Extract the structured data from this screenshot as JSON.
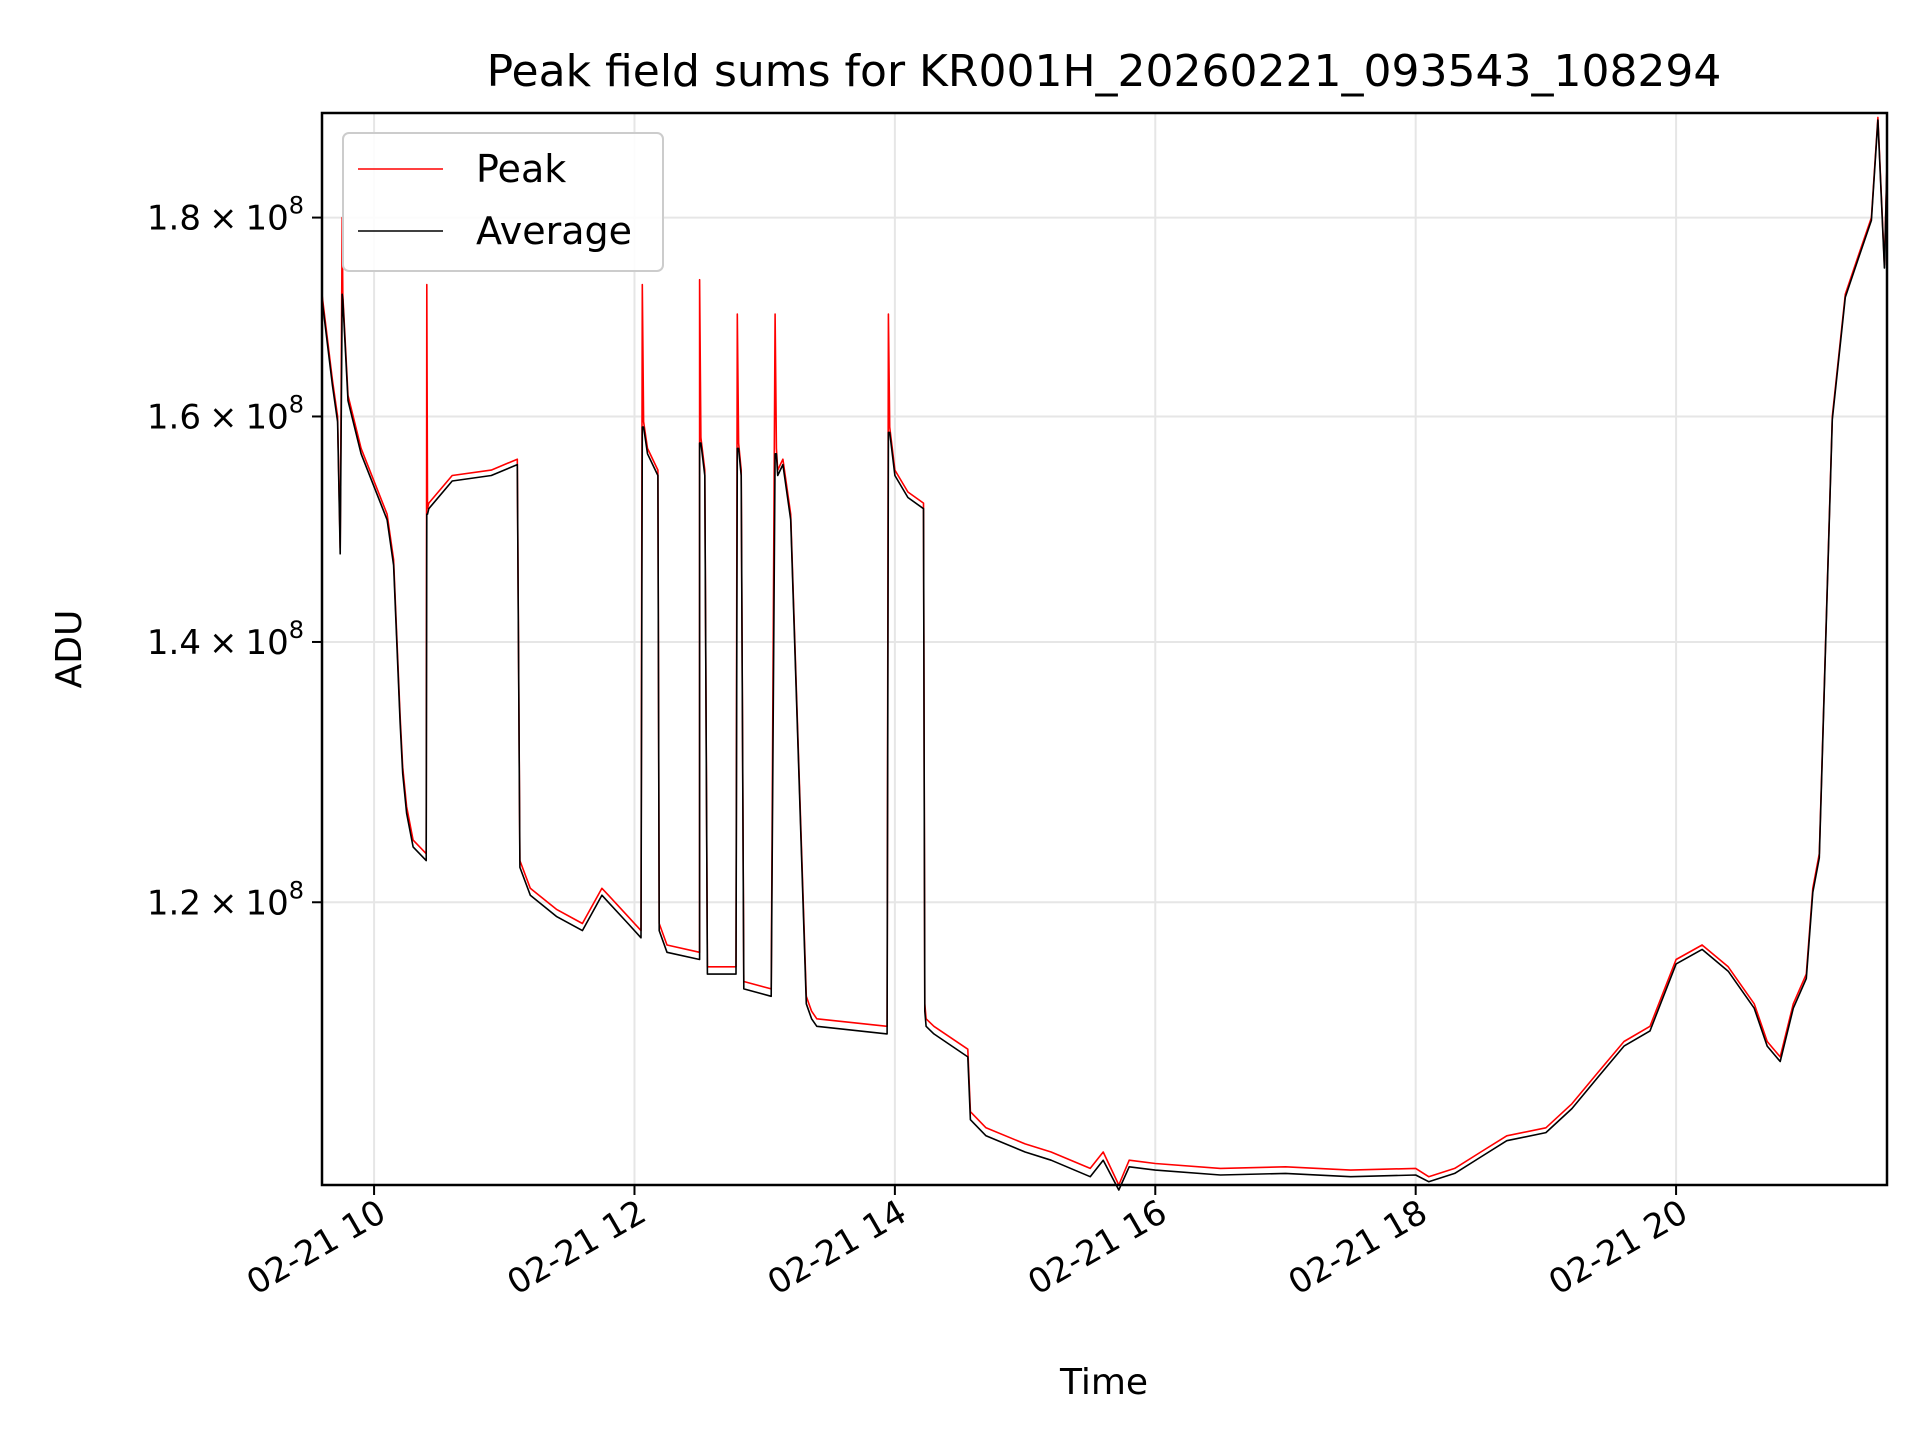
{
  "chart_data": {
    "type": "line",
    "title": "Peak field sums for KR001H_20260221_093543_108294",
    "xlabel": "Time",
    "ylabel": "ADU",
    "yscale": "log",
    "x_unit": "hours since 2026-02-21 00:00",
    "xlim": [
      9.6,
      21.62
    ],
    "ylim": [
      101500000,
      191500000
    ],
    "grid": true,
    "legend_position": "upper-left",
    "x_ticks": [
      {
        "value": 10,
        "label": "02-21 10"
      },
      {
        "value": 12,
        "label": "02-21 12"
      },
      {
        "value": 14,
        "label": "02-21 14"
      },
      {
        "value": 16,
        "label": "02-21 16"
      },
      {
        "value": 18,
        "label": "02-21 18"
      },
      {
        "value": 20,
        "label": "02-21 20"
      }
    ],
    "y_ticks": [
      {
        "value": 120000000,
        "mantissa": "1.2",
        "base": "10",
        "exp": "8"
      },
      {
        "value": 140000000,
        "mantissa": "1.4",
        "base": "10",
        "exp": "8"
      },
      {
        "value": 160000000,
        "mantissa": "1.6",
        "base": "10",
        "exp": "8"
      },
      {
        "value": 180000000,
        "mantissa": "1.8",
        "base": "10",
        "exp": "8"
      }
    ],
    "series": [
      {
        "name": "Peak",
        "color": "#ff0000",
        "x": [
          9.6,
          9.68,
          9.72,
          9.74,
          9.755,
          9.76,
          9.8,
          9.9,
          10.1,
          10.15,
          10.2,
          10.22,
          10.25,
          10.3,
          10.4,
          10.405,
          10.41,
          10.42,
          10.6,
          10.9,
          11.1,
          11.12,
          11.2,
          11.4,
          11.6,
          11.75,
          11.8,
          11.95,
          12.05,
          12.06,
          12.07,
          12.1,
          12.18,
          12.19,
          12.25,
          12.5,
          12.5,
          12.51,
          12.54,
          12.56,
          12.78,
          12.79,
          12.8,
          12.82,
          12.84,
          13.05,
          13.08,
          13.09,
          13.1,
          13.14,
          13.2,
          13.32,
          13.34,
          13.36,
          13.4,
          13.94,
          13.95,
          13.96,
          14.0,
          14.1,
          14.22,
          14.23,
          14.24,
          14.3,
          14.56,
          14.58,
          14.7,
          15.0,
          15.2,
          15.5,
          15.6,
          15.72,
          15.8,
          16.0,
          16.5,
          17.0,
          17.5,
          18.0,
          18.1,
          18.3,
          18.5,
          18.7,
          19.0,
          19.2,
          19.4,
          19.6,
          19.8,
          20.0,
          20.2,
          20.4,
          20.6,
          20.7,
          20.8,
          20.9,
          21.0,
          21.05,
          21.1,
          21.2,
          21.3,
          21.4,
          21.5,
          21.55,
          21.6,
          21.62
        ],
        "values": [
          172000000,
          163500000,
          160000000,
          148000000,
          180000000,
          172000000,
          162000000,
          157000000,
          151000000,
          147000000,
          134000000,
          130000000,
          127000000,
          124500000,
          123500000,
          173000000,
          151500000,
          152000000,
          154500000,
          155000000,
          156000000,
          123000000,
          121000000,
          119500000,
          118500000,
          121000000,
          120500000,
          119000000,
          118000000,
          173000000,
          159500000,
          157000000,
          155000000,
          118500000,
          117000000,
          116500000,
          173500000,
          158000000,
          155000000,
          115500000,
          115500000,
          170000000,
          157500000,
          155000000,
          114500000,
          114000000,
          170000000,
          157000000,
          155000000,
          156000000,
          151000000,
          113500000,
          113000000,
          112500000,
          112000000,
          111500000,
          170000000,
          159000000,
          155000000,
          153000000,
          152000000,
          113000000,
          112000000,
          111500000,
          110000000,
          106000000,
          105000000,
          104000000,
          103500000,
          102500000,
          103500000,
          101500000,
          103000000,
          102800000,
          102500000,
          102600000,
          102400000,
          102500000,
          102000000,
          102500000,
          103500000,
          104500000,
          105000000,
          106500000,
          108500000,
          110500000,
          111500000,
          116000000,
          117000000,
          115500000,
          113000000,
          110500000,
          109500000,
          113000000,
          115000000,
          121000000,
          123500000,
          160000000,
          172000000,
          176000000,
          180000000,
          191000000,
          175000000,
          186000000
        ]
      },
      {
        "name": "Average",
        "color": "#000000",
        "x": [
          9.6,
          9.68,
          9.72,
          9.74,
          9.755,
          9.76,
          9.8,
          9.9,
          10.1,
          10.15,
          10.2,
          10.22,
          10.25,
          10.3,
          10.4,
          10.405,
          10.41,
          10.42,
          10.6,
          10.9,
          11.1,
          11.12,
          11.2,
          11.4,
          11.6,
          11.75,
          11.8,
          11.95,
          12.05,
          12.06,
          12.07,
          12.1,
          12.18,
          12.19,
          12.25,
          12.5,
          12.5,
          12.51,
          12.54,
          12.56,
          12.78,
          12.79,
          12.8,
          12.82,
          12.84,
          13.05,
          13.08,
          13.09,
          13.1,
          13.14,
          13.2,
          13.32,
          13.34,
          13.36,
          13.4,
          13.94,
          13.95,
          13.96,
          14.0,
          14.1,
          14.22,
          14.23,
          14.24,
          14.3,
          14.56,
          14.58,
          14.7,
          15.0,
          15.2,
          15.5,
          15.6,
          15.72,
          15.8,
          16.0,
          16.5,
          17.0,
          17.5,
          18.0,
          18.1,
          18.3,
          18.5,
          18.7,
          19.0,
          19.2,
          19.4,
          19.6,
          19.8,
          20.0,
          20.2,
          20.4,
          20.6,
          20.7,
          20.8,
          20.9,
          21.0,
          21.05,
          21.1,
          21.2,
          21.3,
          21.4,
          21.5,
          21.55,
          21.6,
          21.62
        ],
        "values": [
          171500000,
          163000000,
          159500000,
          147500000,
          172000000,
          171500000,
          161500000,
          156500000,
          150500000,
          146500000,
          133500000,
          129500000,
          126500000,
          124000000,
          123000000,
          151000000,
          151000000,
          151500000,
          154000000,
          154500000,
          155500000,
          122500000,
          120500000,
          119000000,
          118000000,
          120500000,
          120000000,
          118500000,
          117500000,
          159000000,
          159000000,
          156500000,
          154500000,
          118000000,
          116500000,
          116000000,
          157500000,
          157500000,
          154500000,
          115000000,
          115000000,
          157000000,
          157000000,
          154500000,
          114000000,
          113500000,
          156500000,
          156500000,
          154500000,
          155500000,
          150500000,
          113000000,
          112500000,
          112000000,
          111500000,
          111000000,
          158500000,
          158500000,
          154500000,
          152500000,
          151500000,
          112500000,
          111500000,
          111000000,
          109500000,
          105500000,
          104500000,
          103500000,
          103000000,
          102000000,
          103000000,
          101200000,
          102600000,
          102400000,
          102100000,
          102200000,
          102000000,
          102100000,
          101700000,
          102200000,
          103200000,
          104200000,
          104700000,
          106200000,
          108200000,
          110200000,
          111200000,
          115700000,
          116700000,
          115200000,
          112700000,
          110200000,
          109200000,
          112700000,
          114700000,
          120700000,
          123200000,
          159700000,
          171700000,
          175700000,
          179700000,
          190700000,
          174700000,
          185700000
        ]
      }
    ]
  }
}
